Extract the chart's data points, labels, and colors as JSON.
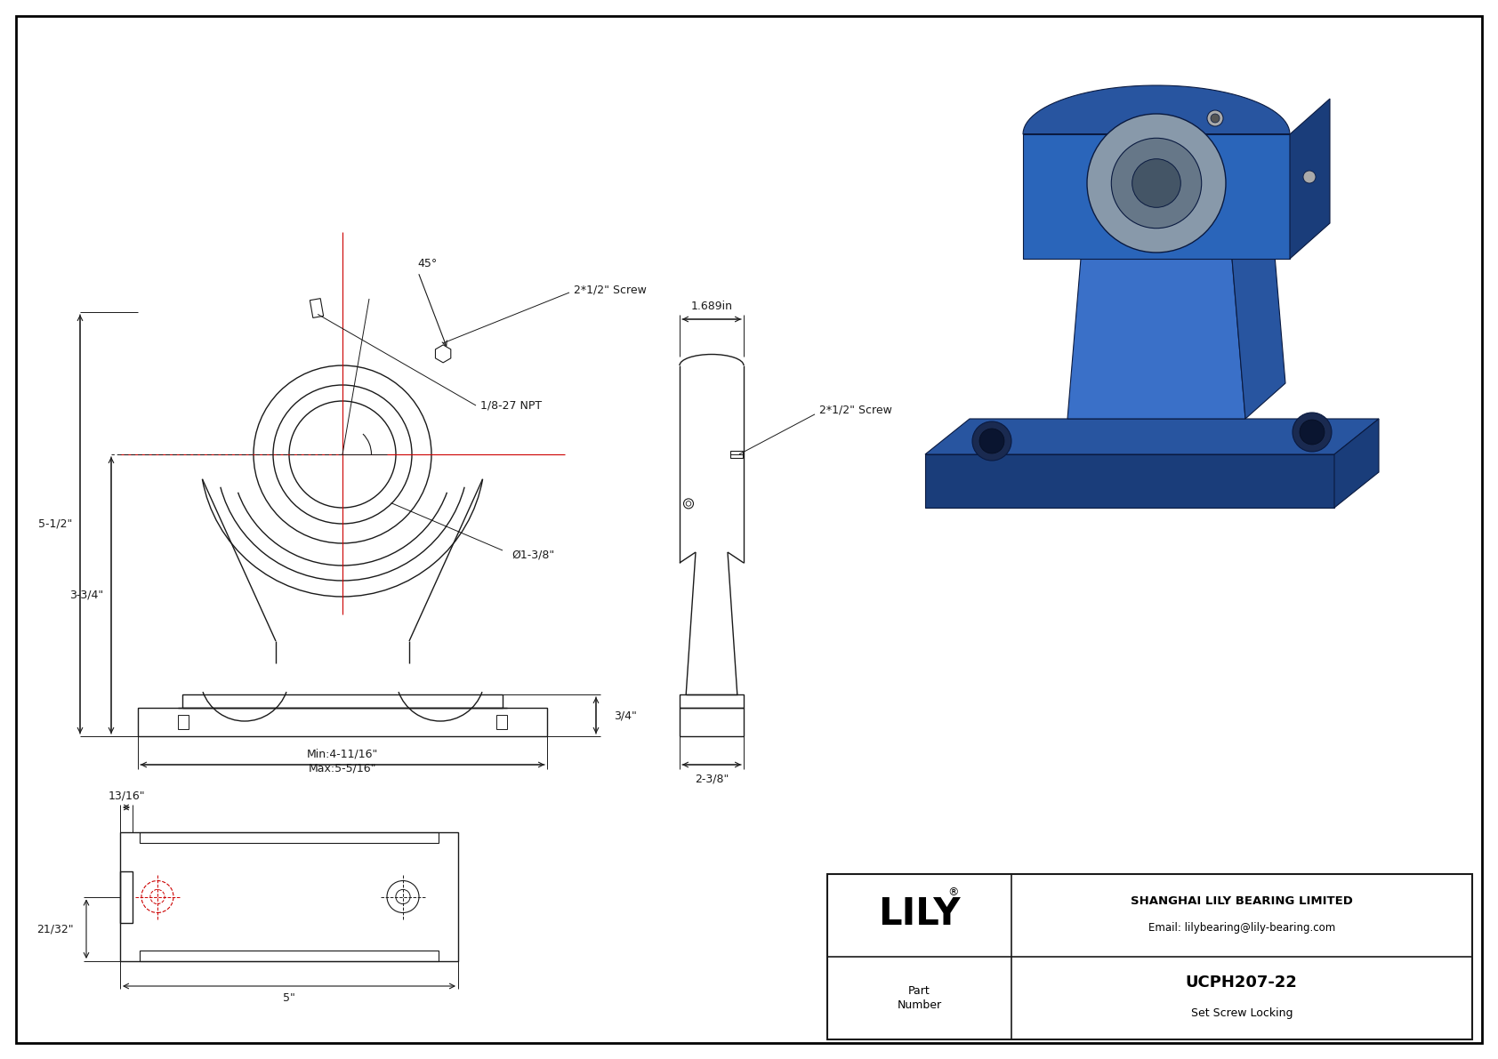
{
  "bg_color": "#ffffff",
  "line_color": "#1a1a1a",
  "red_color": "#cc0000",
  "border_color": "#000000",
  "title_company": "SHANGHAI LILY BEARING LIMITED",
  "title_email": "Email: lilybearing@lily-bearing.com",
  "part_number": "UCPH207-22",
  "part_type": "Set Screw Locking",
  "brand_reg": "®",
  "dims": {
    "height_total": "5-1/2\"",
    "height_center": "3-3/4\"",
    "width_min": "Min:4-11/16\"",
    "width_max": "Max:5-5/16\"",
    "bore": "Ø1-3/8\"",
    "base_height": "3/4\"",
    "angle": "45°",
    "npt": "1/8-27 NPT",
    "screw": "2*1/2\" Screw",
    "side_width": "1.689in",
    "side_base": "2-3/8\"",
    "bottom_offset": "13/16\"",
    "bottom_side": "21/32\"",
    "bottom_width": "5\""
  }
}
